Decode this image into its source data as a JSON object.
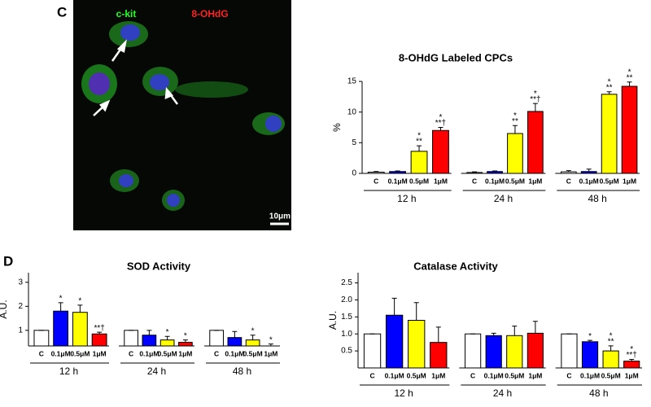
{
  "figure": {
    "panel_c": "C",
    "panel_d": "D",
    "image_labels": [
      "c-kit",
      "8-OHdG"
    ],
    "scale_bar": "10μm"
  },
  "chart_data": [
    {
      "type": "bar",
      "title": "8-OHdG Labeled CPCs",
      "ylabel": "%",
      "categories": [
        "12 h",
        "24 h",
        "48 h"
      ],
      "ylim": [
        0,
        15
      ],
      "yticks": [
        0,
        5,
        10,
        15
      ],
      "series": [
        {
          "name": "C",
          "color": "#ffffff",
          "values": [
            0.2,
            0.15,
            0.25
          ],
          "errors": [
            0.1,
            0.1,
            0.2
          ],
          "marks": [
            [],
            [],
            []
          ]
        },
        {
          "name": "0.1μM",
          "color": "#0000ff",
          "values": [
            0.3,
            0.3,
            0.3
          ],
          "errors": [
            0.1,
            0.1,
            0.4
          ],
          "marks": [
            [],
            [],
            []
          ]
        },
        {
          "name": "0.5μM",
          "color": "#ffff00",
          "values": [
            3.6,
            6.5,
            12.9
          ],
          "errors": [
            0.9,
            1.3,
            0.4
          ],
          "marks": [
            [
              "*",
              "**"
            ],
            [
              "*",
              "**"
            ],
            [
              "*",
              "**"
            ]
          ]
        },
        {
          "name": "1μM",
          "color": "#ff0000",
          "values": [
            7.0,
            10.1,
            14.2
          ],
          "errors": [
            0.5,
            1.3,
            0.7
          ],
          "marks": [
            [
              "*",
              "**†"
            ],
            [
              "*",
              "**†"
            ],
            [
              "*",
              "**"
            ]
          ]
        }
      ]
    },
    {
      "type": "bar",
      "title": "SOD Activity",
      "ylabel": "A.U.",
      "categories": [
        "12 h",
        "24 h",
        "48 h"
      ],
      "ylim": [
        0.35,
        3.4
      ],
      "yticks": [
        1,
        2,
        3
      ],
      "series": [
        {
          "name": "C",
          "color": "#ffffff",
          "values": [
            1,
            1,
            1
          ],
          "errors": [
            0,
            0,
            0
          ],
          "marks": [
            [],
            [],
            []
          ]
        },
        {
          "name": "0.1μM",
          "color": "#0000ff",
          "values": [
            1.8,
            0.8,
            0.7
          ],
          "errors": [
            0.35,
            0.2,
            0.25
          ],
          "marks": [
            [
              "*"
            ],
            [],
            []
          ]
        },
        {
          "name": "0.5μM",
          "color": "#ffff00",
          "values": [
            1.75,
            0.6,
            0.6
          ],
          "errors": [
            0.3,
            0.15,
            0.2
          ],
          "marks": [
            [
              "*"
            ],
            [
              "*"
            ],
            [
              "*"
            ]
          ]
        },
        {
          "name": "1μM",
          "color": "#ff0000",
          "values": [
            0.85,
            0.5,
            0.35
          ],
          "errors": [
            0.07,
            0.1,
            0.08
          ],
          "marks": [
            [
              "**†"
            ],
            [
              "*"
            ],
            [
              "*"
            ]
          ]
        }
      ]
    },
    {
      "type": "bar",
      "title": "Catalase Activity",
      "ylabel": "A.U.",
      "categories": [
        "12 h",
        "24 h",
        "48 h"
      ],
      "ylim": [
        0,
        2.8
      ],
      "yticks": [
        0.5,
        {
          "value": 1,
          "label": "1.0"
        },
        1.5,
        {
          "value": 2,
          "label": "2.0"
        },
        2.5
      ],
      "series": [
        {
          "name": "C",
          "color": "#ffffff",
          "values": [
            1,
            1,
            1
          ],
          "errors": [
            0,
            0,
            0
          ],
          "marks": [
            [],
            [],
            []
          ]
        },
        {
          "name": "0.1μM",
          "color": "#0000ff",
          "values": [
            1.55,
            0.95,
            0.77
          ],
          "errors": [
            0.5,
            0.07,
            0.04
          ],
          "marks": [
            [],
            [],
            [
              "*"
            ]
          ]
        },
        {
          "name": "0.5μM",
          "color": "#ffff00",
          "values": [
            1.4,
            0.95,
            0.5
          ],
          "errors": [
            0.52,
            0.28,
            0.15
          ],
          "marks": [
            [],
            [],
            [
              "*",
              "**"
            ]
          ]
        },
        {
          "name": "1μM",
          "color": "#ff0000",
          "values": [
            0.75,
            1.02,
            0.2
          ],
          "errors": [
            0.45,
            0.35,
            0.05
          ],
          "marks": [
            [],
            [],
            [
              "*",
              "**†"
            ]
          ]
        }
      ]
    }
  ]
}
